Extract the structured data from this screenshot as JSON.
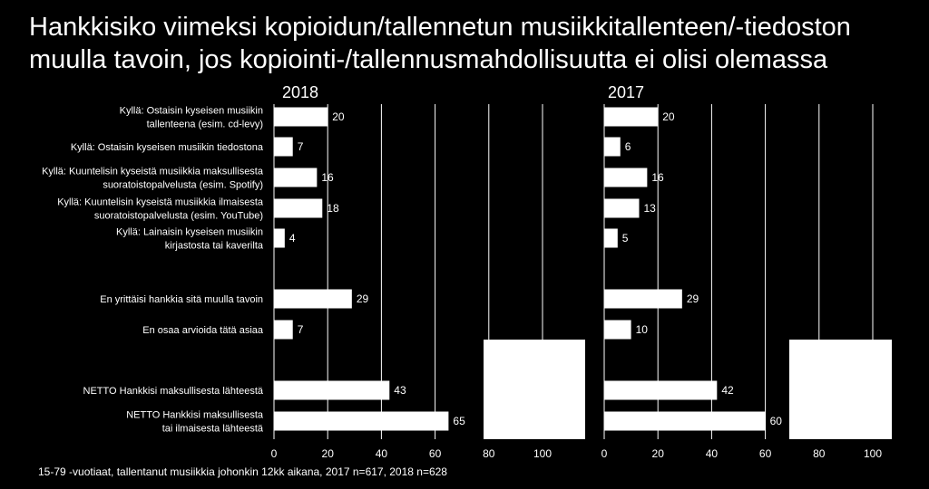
{
  "title": "Hankkisiko viimeksi kopioidun/tallennetun musiikkitallenteen/-tiedoston muulla tavoin, jos kopiointi-/tallennusmahdollisuutta ei olisi olemassa",
  "footnote": "15-79 -vuotiaat, tallentanut musiikkia johonkin 12kk aikana, 2017 n=617, 2018 n=628",
  "chart_data": {
    "type": "bar",
    "orientation": "horizontal",
    "title": "Hankkisiko viimeksi kopioidun/tallennetun musiikkitallenteen/-tiedoston muulla tavoin, jos kopiointi-/tallennusmahdollisuutta ei olisi olemassa",
    "categories": [
      [
        "Kyllä: Ostaisin kyseisen musiikin",
        "tallenteena (esim. cd-levy)"
      ],
      [
        "Kyllä: Ostaisin kyseisen musiikin tiedostona"
      ],
      [
        "Kyllä: Kuuntelisin kyseistä musiikkia maksullisesta",
        "suoratoistopalvelusta (esim. Spotify)"
      ],
      [
        "Kyllä: Kuuntelisin kyseistä musiikkia ilmaisesta",
        "suoratoistopalvelusta (esim. YouTube)"
      ],
      [
        "Kyllä: Lainaisin kyseisen musiikin",
        "kirjastosta tai kaverilta"
      ],
      [
        "En yrittäisi hankkia sitä muulla tavoin"
      ],
      [
        "En osaa arvioida tätä asiaa"
      ],
      [
        "NETTO Hankkisi maksullisesta lähteestä"
      ],
      [
        "NETTO Hankkisi maksullisesta",
        "tai ilmaisesta lähteestä"
      ]
    ],
    "series": [
      {
        "name": "2018",
        "values": [
          20,
          7,
          16,
          18,
          4,
          29,
          7,
          43,
          65
        ]
      },
      {
        "name": "2017",
        "values": [
          20,
          6,
          16,
          13,
          5,
          29,
          10,
          42,
          60
        ]
      }
    ],
    "xlim": [
      0,
      100
    ],
    "xticks": [
      "0",
      "20",
      "40",
      "60",
      "80",
      "100"
    ],
    "grid": true,
    "bar_color": "#ffffff",
    "grid_color": "#ffffff",
    "background": "#000000"
  }
}
